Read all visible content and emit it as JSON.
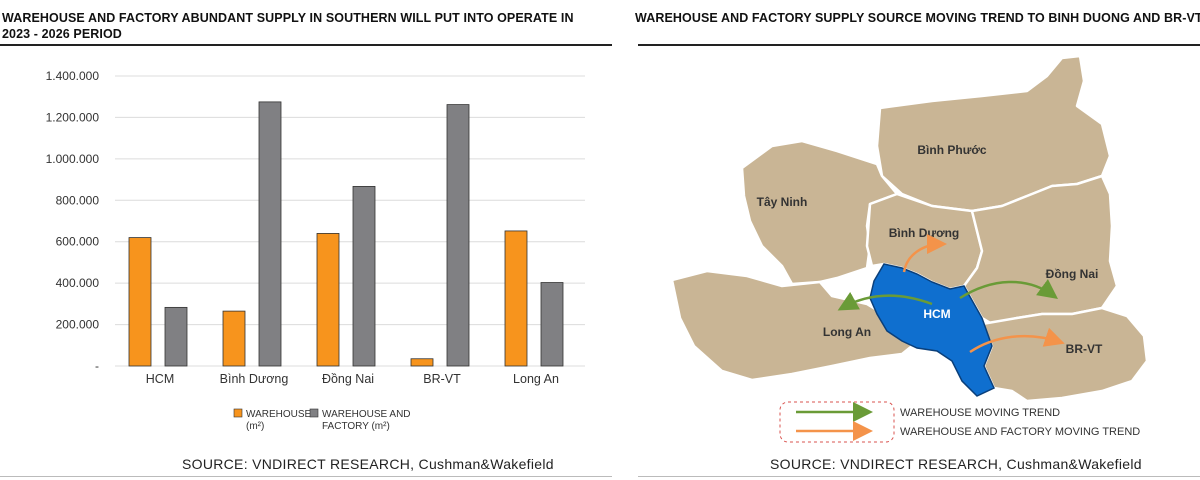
{
  "left_panel": {
    "title": "WAREHOUSE AND FACTORY ABUNDANT SUPPLY IN SOUTHERN WILL PUT INTO OPERATE IN 2023 - 2026 PERIOD",
    "source": "SOURCE: VNDIRECT RESEARCH, Cushman&Wakefield"
  },
  "chart_data": {
    "type": "bar",
    "title": "WAREHOUSE AND FACTORY ABUNDANT SUPPLY IN SOUTHERN WILL PUT INTO OPERATE IN 2023 - 2026 PERIOD",
    "xlabel": "",
    "ylabel": "",
    "categories": [
      "HCM",
      "Bình Dương",
      "Đồng Nai",
      "BR-VT",
      "Long An"
    ],
    "y_ticks": [
      "-",
      "200.000",
      "400.000",
      "600.000",
      "800.000",
      "1.000.000",
      "1.200.000",
      "1.400.000"
    ],
    "ylim": [
      0,
      1400000
    ],
    "grid": true,
    "legend_position": "bottom",
    "series": [
      {
        "name": "WAREHOUSE (m²)",
        "name_lines": [
          "WAREHOUSE",
          "(m²)"
        ],
        "color": "#f7941d",
        "values": [
          620000,
          265000,
          640000,
          35000,
          652000
        ]
      },
      {
        "name": "WAREHOUSE AND FACTORY (m²)",
        "name_lines": [
          "WAREHOUSE AND",
          "FACTORY (m²)"
        ],
        "color": "#808083",
        "values": [
          283000,
          1275000,
          867000,
          1262000,
          403000
        ]
      }
    ]
  },
  "right_panel": {
    "title": "WAREHOUSE AND FACTORY SUPPLY SOURCE MOVING TREND TO BINH DUONG AND BR-VT",
    "source": "SOURCE: VNDIRECT RESEARCH, Cushman&Wakefield",
    "map": {
      "regions": [
        "Bình Phước",
        "Tây Ninh",
        "Bình Dương",
        "Đồng Nai",
        "HCM",
        "Long An",
        "BR-VT"
      ],
      "land_color": "#c9b595",
      "hcm_color": "#0f6fcf",
      "legend": [
        {
          "label": "WAREHOUSE MOVING TREND",
          "color": "#6a9b37"
        },
        {
          "label": "WAREHOUSE AND FACTORY MOVING TREND",
          "color": "#f4934a"
        }
      ]
    }
  }
}
